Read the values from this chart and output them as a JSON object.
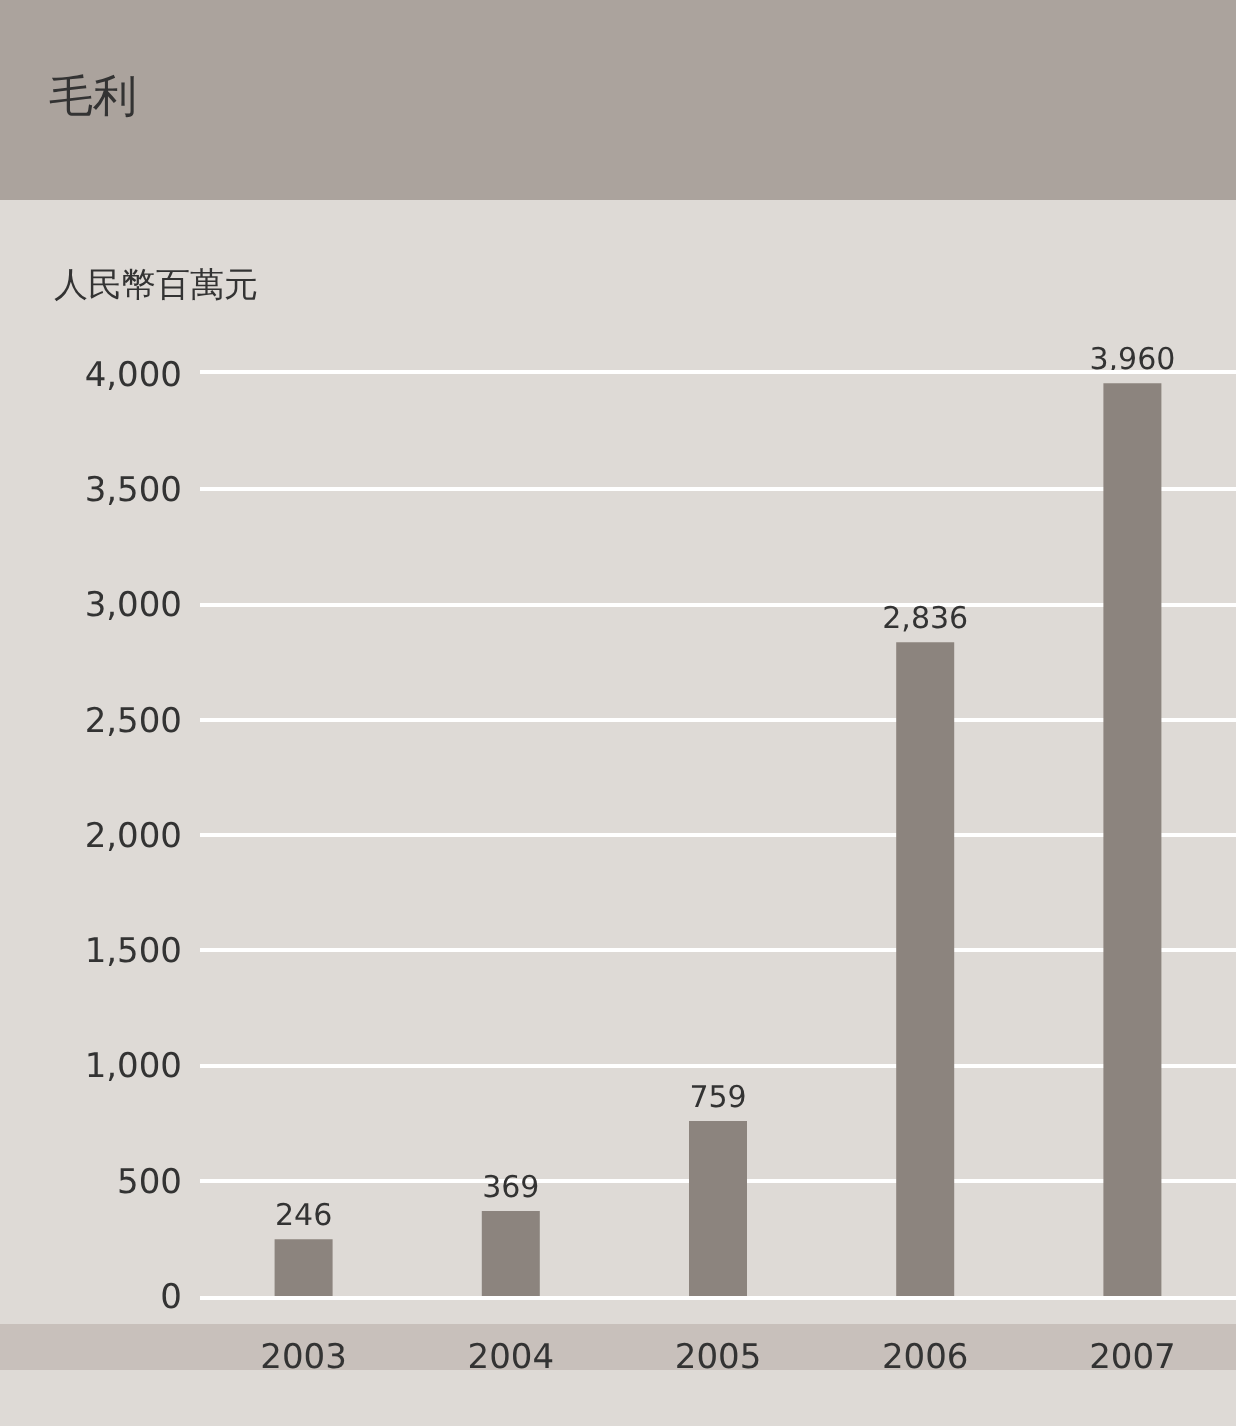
{
  "chart_data": {
    "type": "bar",
    "title": "毛利",
    "ylabel": "人民幣百萬元",
    "categories": [
      "2003",
      "2004",
      "2005",
      "2006",
      "2007"
    ],
    "values": [
      246,
      369,
      759,
      2836,
      3960
    ],
    "color": "#8c847e",
    "ylim": [
      0,
      4000
    ],
    "yticks": [
      {
        "value": 0,
        "label": "0"
      },
      {
        "value": 500,
        "label": "500"
      },
      {
        "value": 1000,
        "label": "1,000"
      },
      {
        "value": 1500,
        "label": "1,500"
      },
      {
        "value": 2000,
        "label": "2,000"
      },
      {
        "value": 2500,
        "label": "2,500"
      },
      {
        "value": 3000,
        "label": "3,000"
      },
      {
        "value": 3500,
        "label": "3,500"
      },
      {
        "value": 4000,
        "label": "4,000"
      }
    ],
    "value_labels": [
      "246",
      "369",
      "759",
      "2,836",
      "3,960"
    ],
    "grid": "y"
  }
}
